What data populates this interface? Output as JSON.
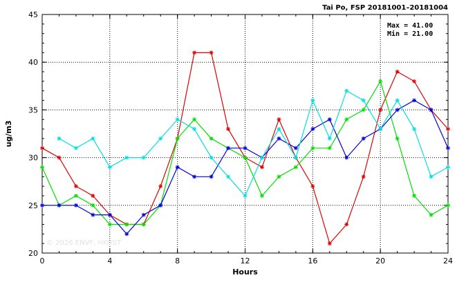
{
  "chart_data": {
    "type": "line",
    "title": "Tai Po, FSP 20181001–20181004",
    "xlabel": "Hours",
    "ylabel": "ug/m3",
    "xlim": [
      0,
      24
    ],
    "ylim": [
      20,
      45
    ],
    "x_ticks": [
      "0",
      "4",
      "8",
      "12",
      "16",
      "20",
      "24"
    ],
    "y_ticks": [
      "20",
      "25",
      "30",
      "35",
      "40",
      "45"
    ],
    "grid": true,
    "annotations": [
      "Max = 41.00",
      "Min = 21.00"
    ],
    "watermark": "© 2026  ENVF, HKUST",
    "series": [
      {
        "color": "#e00000",
        "x": [
          0,
          1,
          2,
          3,
          4,
          5,
          6,
          7,
          8,
          9,
          10,
          11,
          12,
          13,
          14,
          15,
          16,
          17,
          18,
          19,
          20,
          21,
          22,
          23,
          24
        ],
        "values": [
          31,
          30,
          27,
          26,
          24,
          23,
          23,
          27,
          32,
          41,
          41,
          33,
          30,
          29,
          34,
          30,
          27,
          21,
          23,
          28,
          35,
          39,
          38,
          35,
          33
        ]
      },
      {
        "color": "#00e000",
        "x": [
          0,
          1,
          2,
          3,
          4,
          5,
          6,
          7,
          8,
          9,
          10,
          11,
          12,
          13,
          14,
          15,
          16,
          17,
          18,
          19,
          20,
          21,
          22,
          23,
          24
        ],
        "values": [
          29,
          25,
          26,
          25,
          23,
          23,
          23,
          25,
          32,
          34,
          32,
          31,
          30,
          26,
          28,
          29,
          31,
          31,
          34,
          35,
          38,
          32,
          26,
          24,
          25
        ]
      },
      {
        "color": "#0000e0",
        "x": [
          0,
          1,
          2,
          3,
          4,
          5,
          6,
          7,
          8,
          9,
          10,
          11,
          12,
          13,
          14,
          15,
          16,
          17,
          18,
          19,
          20,
          21,
          22,
          23,
          24
        ],
        "values": [
          25,
          25,
          25,
          24,
          24,
          22,
          24,
          25,
          29,
          28,
          28,
          31,
          31,
          30,
          32,
          31,
          33,
          34,
          30,
          32,
          33,
          35,
          36,
          35,
          31
        ]
      },
      {
        "color": "#00e0e0",
        "x": [
          1,
          2,
          3,
          4,
          5,
          6,
          7,
          8,
          9,
          10,
          11,
          12,
          13,
          14,
          15,
          16,
          17,
          18,
          19,
          20,
          21,
          22,
          23,
          24
        ],
        "values": [
          32,
          31,
          32,
          29,
          30,
          30,
          32,
          34,
          33,
          30,
          28,
          26,
          30,
          33,
          30,
          36,
          32,
          37,
          36,
          33,
          36,
          33,
          28,
          29
        ]
      }
    ]
  }
}
